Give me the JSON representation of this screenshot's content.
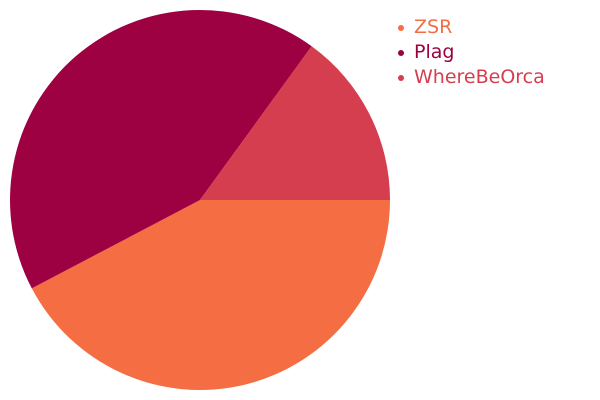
{
  "chart_data": {
    "type": "pie",
    "title": "",
    "legend_position": "top-right",
    "slices": [
      {
        "label": "ZSR",
        "value": 42.3,
        "color": "#f46d43"
      },
      {
        "label": "Plag",
        "value": 42.7,
        "color": "#9e0142"
      },
      {
        "label": "WhereBeOrca",
        "value": 15.0,
        "color": "#d53e4f"
      }
    ]
  }
}
